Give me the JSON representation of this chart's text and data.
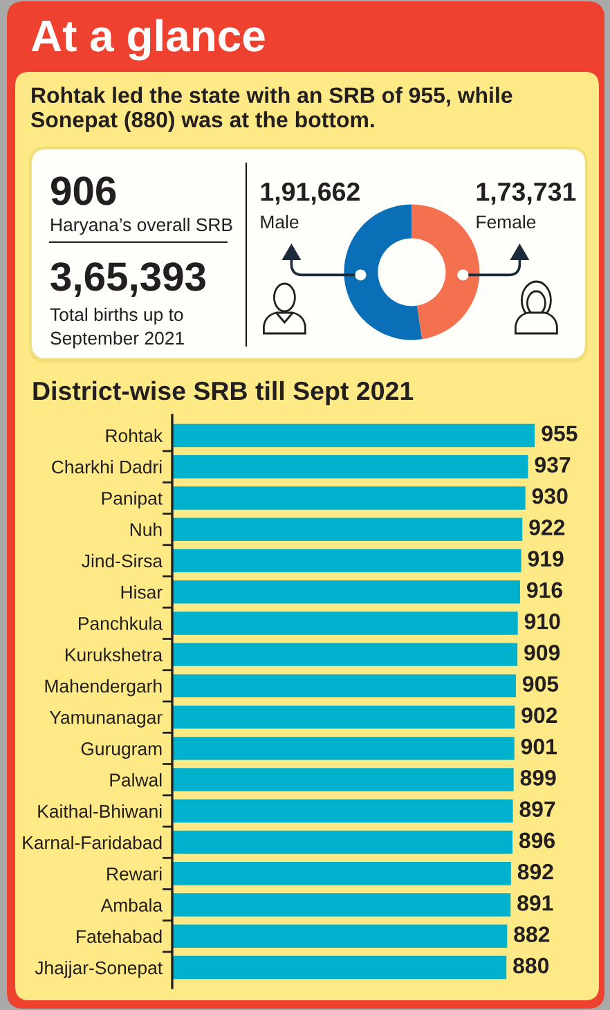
{
  "chart_data": [
    {
      "type": "other",
      "title": "At a glance",
      "subtitle": "Rohtak led the state with an SRB of 955, while Sonepat (880) was at the bottom.",
      "annotations": [
        "906",
        "Haryana’s overall SRB",
        "3,65,393",
        "Total births up to September 2021"
      ]
    },
    {
      "type": "donut",
      "categories": [
        "Male",
        "Female"
      ],
      "values": [
        191662,
        173731
      ],
      "value_labels": [
        "1,91,662",
        "1,73,731"
      ],
      "colors": [
        "#0a6fb7",
        "#f3714e"
      ]
    },
    {
      "type": "bar",
      "orientation": "horizontal",
      "title": "District-wise SRB till Sept 2021",
      "categories": [
        "Rohtak",
        "Charkhi Dadri",
        "Panipat",
        "Nuh",
        "Jind-Sirsa",
        "Hisar",
        "Panchkula",
        "Kurukshetra",
        "Mahendergarh",
        "Yamunanagar",
        "Gurugram",
        "Palwal",
        "Kaithal-Bhiwani",
        "Karnal-Faridabad",
        "Rewari",
        "Ambala",
        "Fatehabad",
        "Jhajjar-Sonepat"
      ],
      "values": [
        955,
        937,
        930,
        922,
        919,
        916,
        910,
        909,
        905,
        902,
        901,
        899,
        897,
        896,
        892,
        891,
        882,
        880
      ],
      "color": "#00b1cd",
      "xlim": [
        0,
        955
      ],
      "tick_labels": "y",
      "data_labels": true
    }
  ]
}
